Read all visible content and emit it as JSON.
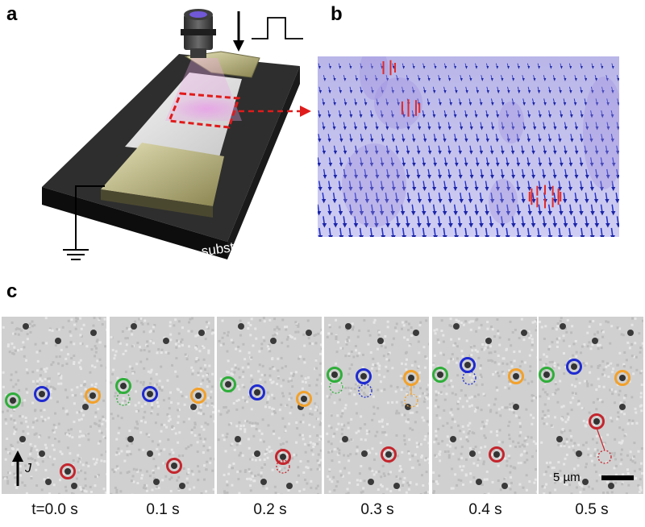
{
  "panels": {
    "a": "a",
    "b": "b",
    "c": "c"
  },
  "panel_a": {
    "substrate_label": "substrate"
  },
  "panel_c": {
    "current_label": "J",
    "scale_bar_label": "5 µm",
    "frames": [
      {
        "label": "t=0.0 s"
      },
      {
        "label": "0.1 s"
      },
      {
        "label": "0.2 s"
      },
      {
        "label": "0.3 s"
      },
      {
        "label": "0.4 s"
      },
      {
        "label": "0.5 s"
      }
    ],
    "marker_colors": {
      "green": "#2fae3a",
      "blue": "#1f2bd0",
      "orange": "#f2a12b",
      "red": "#c4262e"
    }
  }
}
